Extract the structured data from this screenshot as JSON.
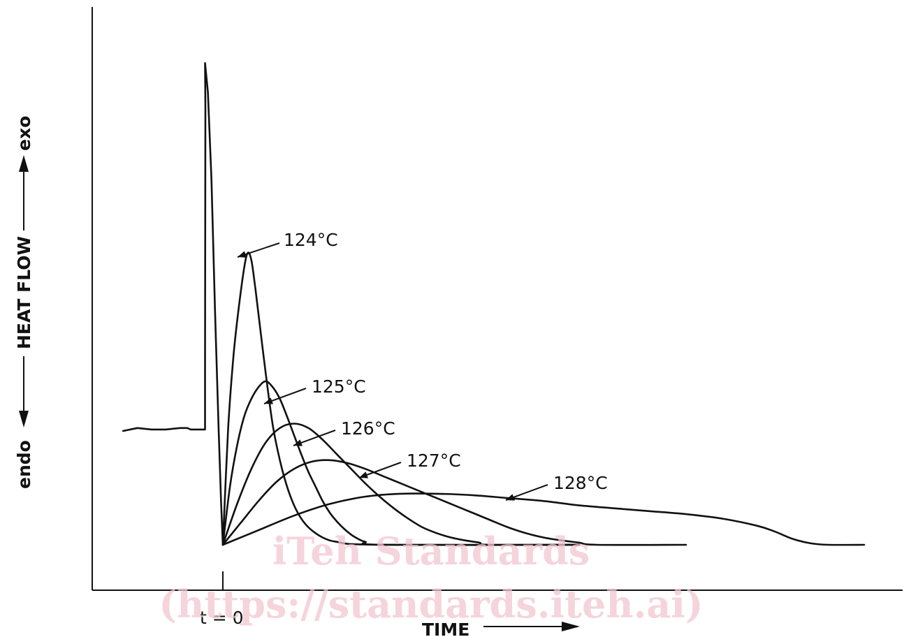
{
  "chart_data": {
    "type": "line",
    "title": "",
    "xlabel": "TIME",
    "ylabel": "HEAT FLOW",
    "ylabel_top": "exo",
    "ylabel_bottom": "endo",
    "x_marker": "t = 0",
    "grid": false,
    "series": [
      {
        "name": "124°C",
        "points": [
          [
            0,
            0
          ],
          [
            1.5,
            80
          ],
          [
            3,
            130
          ],
          [
            4.5,
            163
          ],
          [
            6,
            190
          ],
          [
            7,
            200
          ],
          [
            8,
            195
          ],
          [
            9,
            178
          ],
          [
            10,
            158
          ],
          [
            12,
            118
          ],
          [
            14,
            82
          ],
          [
            16,
            58
          ],
          [
            18,
            40
          ],
          [
            20,
            27
          ],
          [
            22,
            18
          ],
          [
            24,
            12
          ],
          [
            26,
            8
          ],
          [
            28,
            5
          ],
          [
            30,
            3
          ],
          [
            32,
            2
          ],
          [
            34,
            1
          ],
          [
            36,
            0.5
          ],
          [
            40,
            0.2
          ],
          [
            50,
            0
          ],
          [
            100,
            0
          ]
        ]
      },
      {
        "name": "125°C",
        "points": [
          [
            0,
            0
          ],
          [
            2,
            40
          ],
          [
            4,
            68
          ],
          [
            6,
            88
          ],
          [
            8,
            100
          ],
          [
            10,
            108
          ],
          [
            12,
            112
          ],
          [
            14,
            108
          ],
          [
            16,
            100
          ],
          [
            18,
            88
          ],
          [
            20,
            75
          ],
          [
            22,
            62
          ],
          [
            24,
            50
          ],
          [
            26,
            40
          ],
          [
            28,
            30
          ],
          [
            30,
            22
          ],
          [
            32,
            16
          ],
          [
            34,
            11
          ],
          [
            36,
            7
          ],
          [
            38,
            4
          ],
          [
            40,
            2
          ],
          [
            45,
            0
          ],
          [
            100,
            0
          ]
        ]
      },
      {
        "name": "126°C",
        "points": [
          [
            0,
            0
          ],
          [
            4,
            28
          ],
          [
            8,
            52
          ],
          [
            12,
            70
          ],
          [
            16,
            80
          ],
          [
            20,
            83
          ],
          [
            24,
            80
          ],
          [
            28,
            72
          ],
          [
            32,
            62
          ],
          [
            36,
            52
          ],
          [
            40,
            42
          ],
          [
            44,
            33
          ],
          [
            48,
            25
          ],
          [
            52,
            18
          ],
          [
            56,
            12
          ],
          [
            60,
            8
          ],
          [
            64,
            5
          ],
          [
            68,
            3
          ],
          [
            72,
            1.5
          ],
          [
            75,
            0
          ],
          [
            100,
            0
          ]
        ]
      },
      {
        "name": "127°C",
        "points": [
          [
            0,
            0
          ],
          [
            5,
            15
          ],
          [
            10,
            30
          ],
          [
            15,
            43
          ],
          [
            20,
            52
          ],
          [
            25,
            57
          ],
          [
            30,
            58
          ],
          [
            35,
            56
          ],
          [
            40,
            52
          ],
          [
            45,
            47
          ],
          [
            50,
            42
          ],
          [
            55,
            37
          ],
          [
            60,
            32
          ],
          [
            65,
            27
          ],
          [
            70,
            22
          ],
          [
            75,
            17
          ],
          [
            80,
            12
          ],
          [
            85,
            8
          ],
          [
            90,
            5
          ],
          [
            95,
            3
          ],
          [
            100,
            1.5
          ],
          [
            105,
            0
          ],
          [
            130,
            0
          ]
        ]
      },
      {
        "name": "128°C",
        "points": [
          [
            0,
            0
          ],
          [
            10,
            10
          ],
          [
            20,
            20
          ],
          [
            30,
            28
          ],
          [
            40,
            33
          ],
          [
            50,
            35
          ],
          [
            60,
            35
          ],
          [
            70,
            34
          ],
          [
            80,
            32
          ],
          [
            90,
            30
          ],
          [
            100,
            27
          ],
          [
            110,
            25
          ],
          [
            120,
            23
          ],
          [
            130,
            21
          ],
          [
            140,
            18
          ],
          [
            150,
            13
          ],
          [
            155,
            9
          ],
          [
            160,
            4
          ],
          [
            165,
            1
          ],
          [
            170,
            0
          ],
          [
            180,
            0
          ]
        ]
      }
    ],
    "pre_trigger": [
      [
        -28,
        78
      ],
      [
        -24,
        80
      ],
      [
        -20,
        79
      ],
      [
        -16,
        79
      ],
      [
        -12,
        80
      ],
      [
        -10,
        80
      ],
      [
        -9,
        79
      ],
      [
        -5,
        79
      ],
      [
        -5,
        120
      ],
      [
        -4.9,
        300
      ],
      [
        -5,
        330
      ],
      [
        -4.2,
        310
      ],
      [
        -3.2,
        250
      ],
      [
        -2.2,
        160
      ],
      [
        -1.2,
        80
      ],
      [
        -0.5,
        30
      ],
      [
        0,
        0
      ]
    ]
  },
  "watermark": {
    "line1": "iTeh Standards",
    "line2": "(https://standards.iteh.ai)"
  }
}
